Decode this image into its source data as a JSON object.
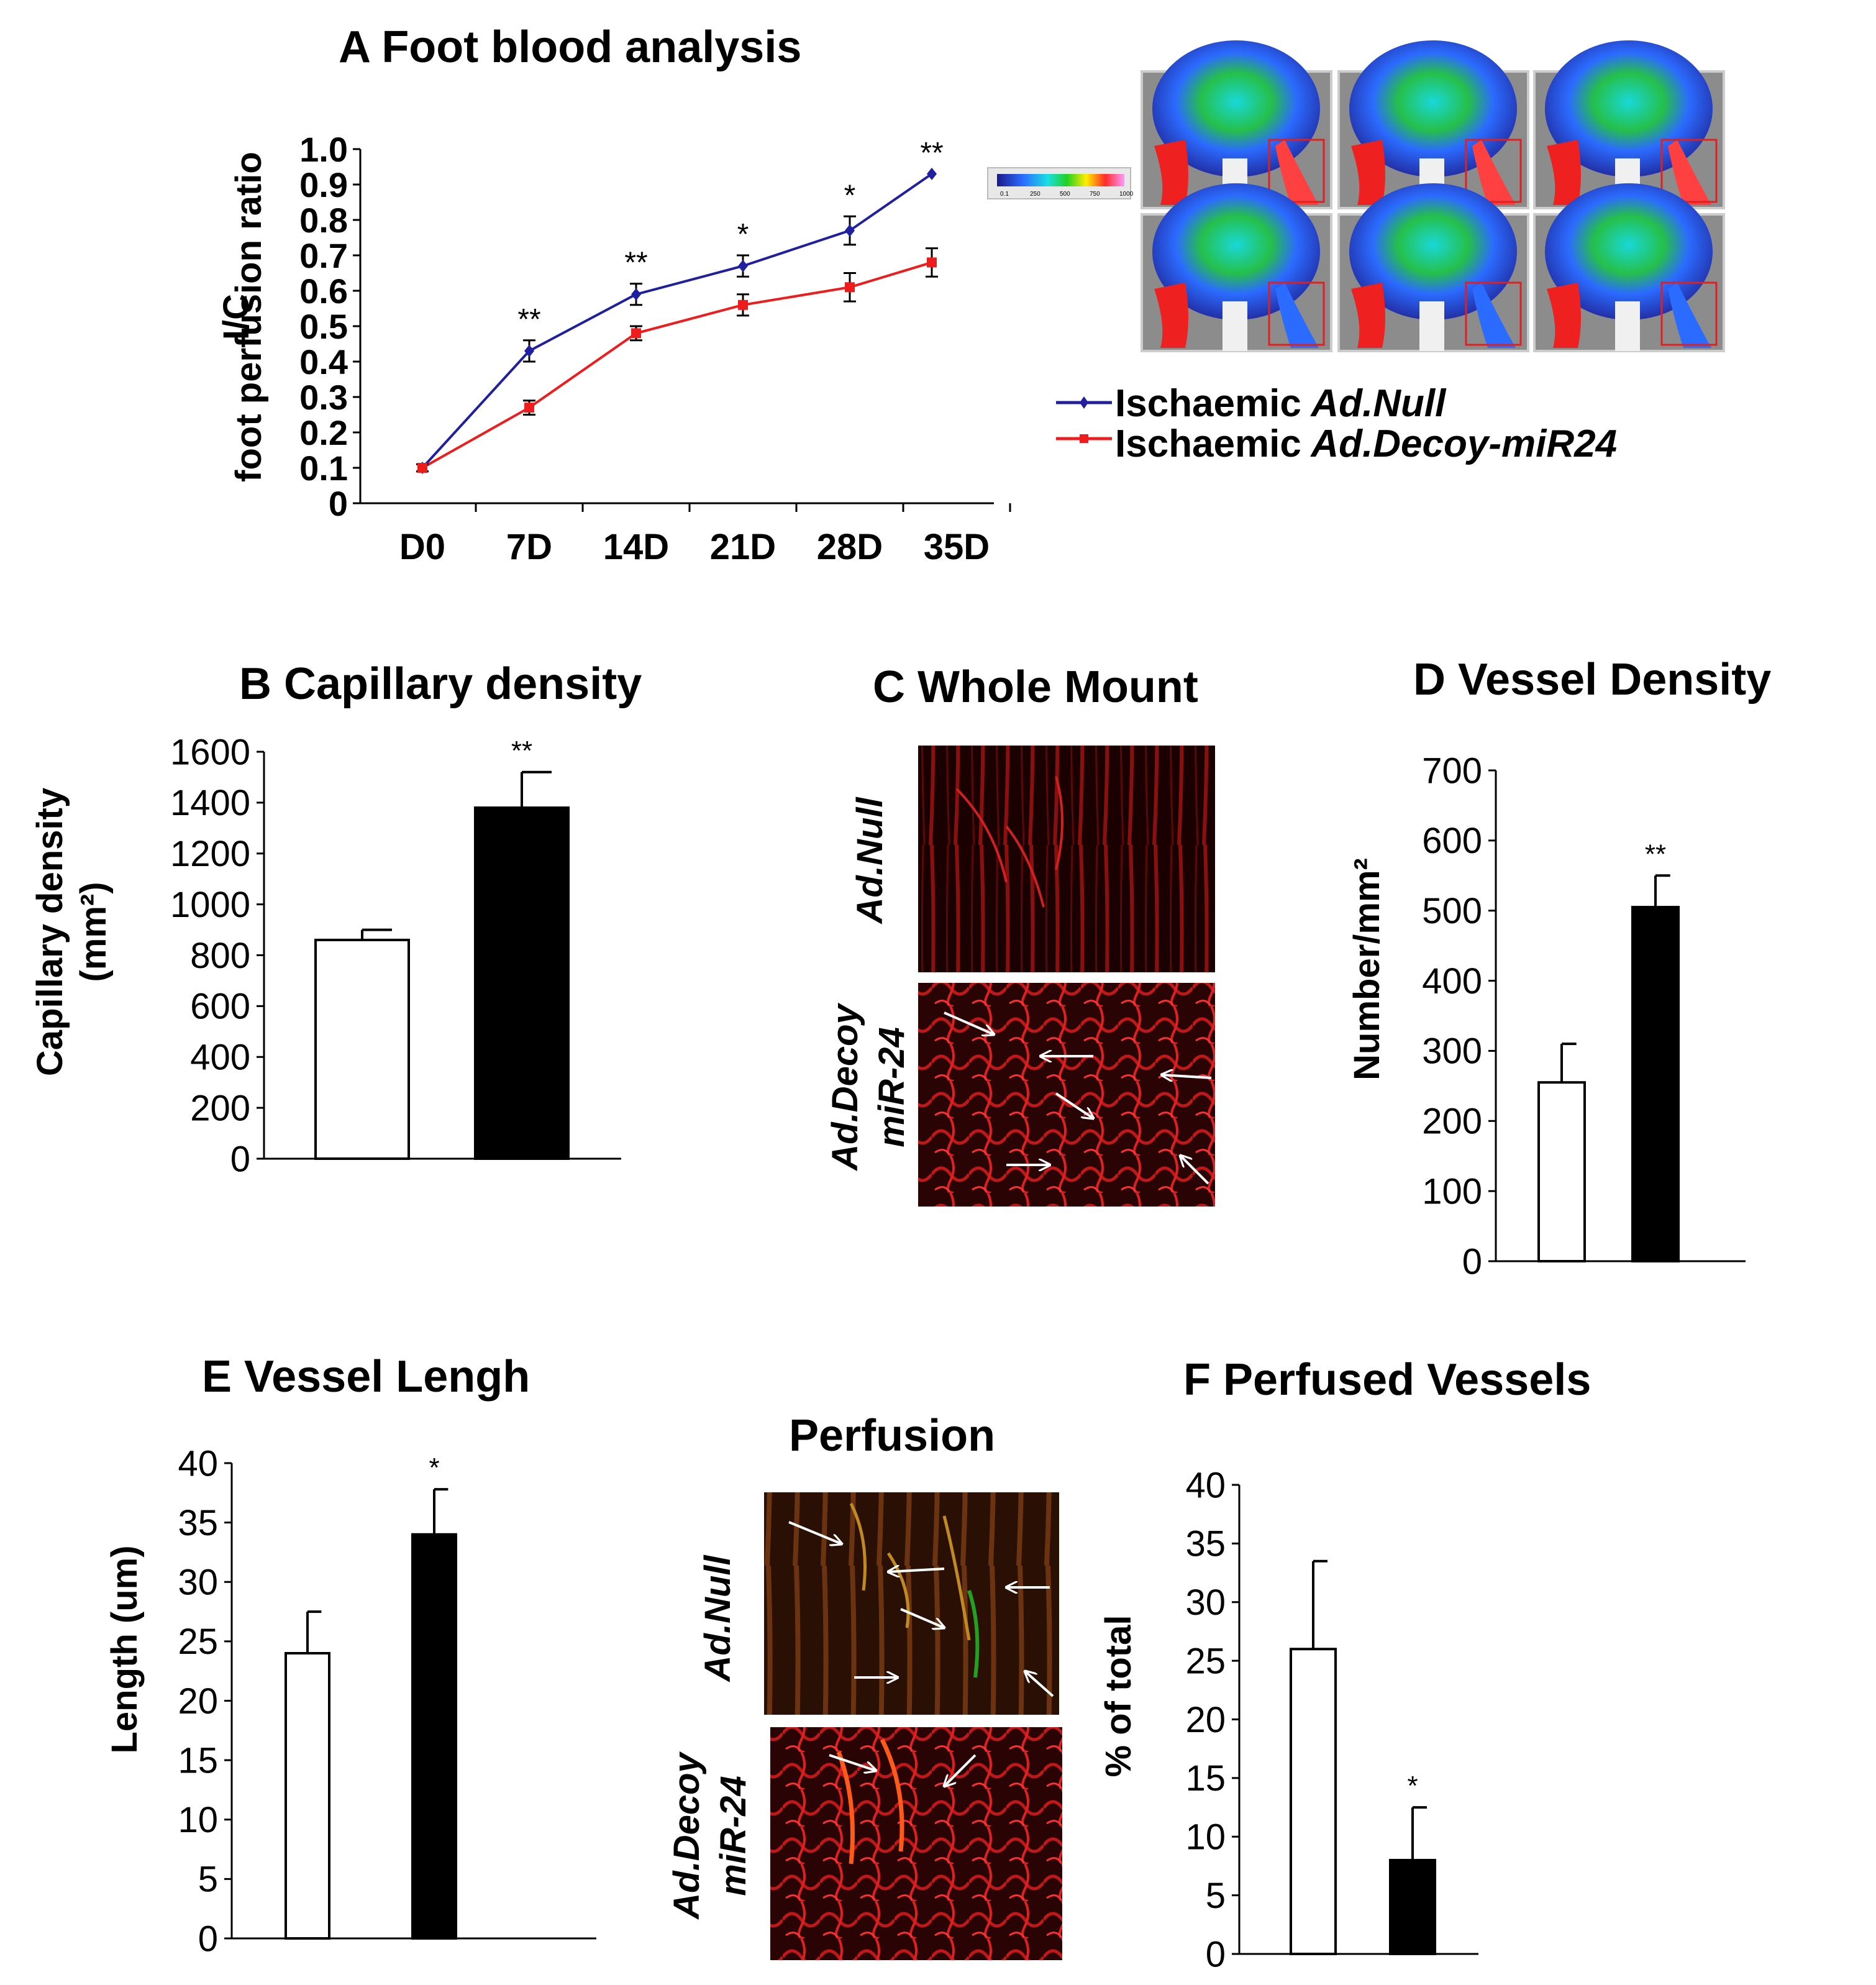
{
  "chart_data": [
    {
      "panel": "A",
      "type": "line",
      "title": "A Foot blood analysis",
      "ylabel_line1": "I/C",
      "ylabel_line2": "foot perfusion ratio",
      "xlabel": "",
      "categories": [
        "D0",
        "7D",
        "14D",
        "21D",
        "28D",
        "35D"
      ],
      "yticks": [
        "0",
        "0.1",
        "0.2",
        "0.3",
        "0.4",
        "0.5",
        "0.6",
        "0.7",
        "0.8",
        "0.9",
        "1.0"
      ],
      "ylim": [
        0,
        1.0
      ],
      "legend_position": "right",
      "series": [
        {
          "name": "Ischaemic",
          "name_italic": "Ad.Null",
          "color": "#1f1fa0",
          "values": [
            0.1,
            0.43,
            0.59,
            0.67,
            0.77,
            0.93
          ],
          "errors": [
            0.01,
            0.03,
            0.03,
            0.03,
            0.04,
            0.0
          ]
        },
        {
          "name": "Ischaemic",
          "name_italic": "Ad.Decoy-miR24",
          "color": "#ee1c1c",
          "values": [
            0.1,
            0.27,
            0.48,
            0.56,
            0.61,
            0.68
          ],
          "errors": [
            0.01,
            0.02,
            0.02,
            0.03,
            0.04,
            0.04
          ]
        }
      ],
      "annotations": [
        "",
        "**",
        "**",
        "*",
        "*",
        "**"
      ]
    },
    {
      "panel": "B",
      "type": "bar",
      "title": "B Capillary density",
      "ylabel_line1": "Capillary density",
      "ylabel_line2": "(mm²)",
      "yticks": [
        "0",
        "200",
        "400",
        "600",
        "800",
        "1000",
        "1200",
        "1400",
        "1600"
      ],
      "ylim": [
        0,
        1600
      ],
      "values": [
        860,
        1380
      ],
      "errors": [
        40,
        140
      ],
      "annotations": [
        "",
        "**"
      ],
      "fills": [
        "#ffffff",
        "#000000"
      ]
    },
    {
      "panel": "D",
      "type": "bar",
      "title": "D    Vessel Density",
      "ylabel_line1": "Number/mm²",
      "yticks": [
        "0",
        "100",
        "200",
        "300",
        "400",
        "500",
        "600",
        "700"
      ],
      "ylim": [
        0,
        700
      ],
      "values": [
        255,
        505
      ],
      "errors": [
        55,
        45
      ],
      "annotations": [
        "",
        "**"
      ],
      "fills": [
        "#ffffff",
        "#000000"
      ]
    },
    {
      "panel": "E",
      "type": "bar",
      "title": "E    Vessel Lengh",
      "ylabel_line1": "Length (um)",
      "yticks": [
        "0",
        "5",
        "10",
        "15",
        "20",
        "25",
        "30",
        "35",
        "40"
      ],
      "ylim": [
        0,
        40
      ],
      "values": [
        24,
        34
      ],
      "errors": [
        3.5,
        3.8
      ],
      "annotations": [
        "",
        "*"
      ],
      "fills": [
        "#ffffff",
        "#000000"
      ]
    },
    {
      "panel": "F",
      "type": "bar",
      "title": "F    Perfused Vessels",
      "ylabel_line1": "% of total",
      "yticks": [
        "0",
        "5",
        "10",
        "15",
        "20",
        "25",
        "30",
        "35",
        "40"
      ],
      "ylim": [
        0,
        40
      ],
      "values": [
        26,
        8
      ],
      "errors": [
        7.5,
        4.5
      ],
      "annotations": [
        "",
        "*"
      ],
      "fills": [
        "#ffffff",
        "#000000"
      ]
    }
  ],
  "panel_c": {
    "title": "C   Whole Mount",
    "row1_label": "Ad.Null",
    "row2_label_line1": "Ad.Decoy",
    "row2_label_line2": "miR-24"
  },
  "perfusion": {
    "title": "Perfusion",
    "row1_label": "Ad.Null",
    "row2_label_line1": "Ad.Decoy",
    "row2_label_line2": "miR-24"
  },
  "colorbar_ticks": [
    "0.1",
    "250",
    "500",
    "750",
    "1000"
  ]
}
